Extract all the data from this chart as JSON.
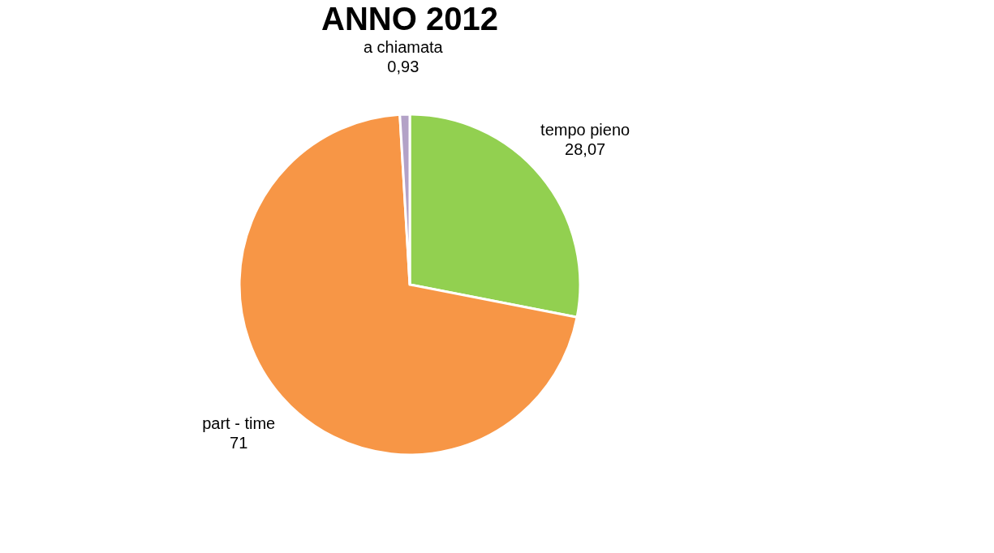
{
  "chart_data": {
    "type": "pie",
    "title": "ANNO 2012",
    "categories": [
      "tempo pieno",
      "part - time",
      "a chiamata"
    ],
    "values": [
      28.07,
      71,
      0.93
    ],
    "colors": [
      "#92d050",
      "#f79646",
      "#b3a2c7"
    ],
    "value_labels": [
      "28,07",
      "71",
      "0,93"
    ]
  }
}
